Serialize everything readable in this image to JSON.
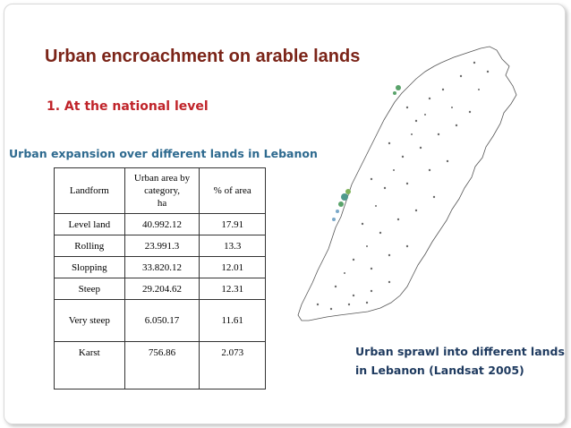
{
  "slide": {
    "title": "Urban encroachment on arable lands",
    "subtitle": "1. At the national level",
    "table_caption": "Urban expansion over different lands in Lebanon",
    "map_caption_line1": "Urban sprawl into different lands",
    "map_caption_line2": "in Lebanon (Landsat 2005)"
  },
  "table": {
    "headers": {
      "landform": "Landform",
      "area_line1": "Urban area by",
      "area_line2": "category,",
      "area_line3": "ha",
      "pct": "% of area"
    },
    "rows": [
      {
        "landform": "Level land",
        "area": "40.992.12",
        "pct": "17.91"
      },
      {
        "landform": "Rolling",
        "area": "23.991.3",
        "pct": "13.3"
      },
      {
        "landform": "Slopping",
        "area": "33.820.12",
        "pct": "12.01"
      },
      {
        "landform": "Steep",
        "area": "29.204.62",
        "pct": "12.31"
      },
      {
        "landform": "Very steep",
        "area": "6.050.17",
        "pct": "11.61"
      },
      {
        "landform": "Karst",
        "area": "756.86",
        "pct": "2.073"
      }
    ]
  },
  "colors": {
    "title": "#7b2418",
    "subtitle": "#c0242a",
    "table_caption": "#2e6a8f",
    "map_caption": "#1e3a5f"
  },
  "map": {
    "icon": "lebanon-map-icon"
  }
}
